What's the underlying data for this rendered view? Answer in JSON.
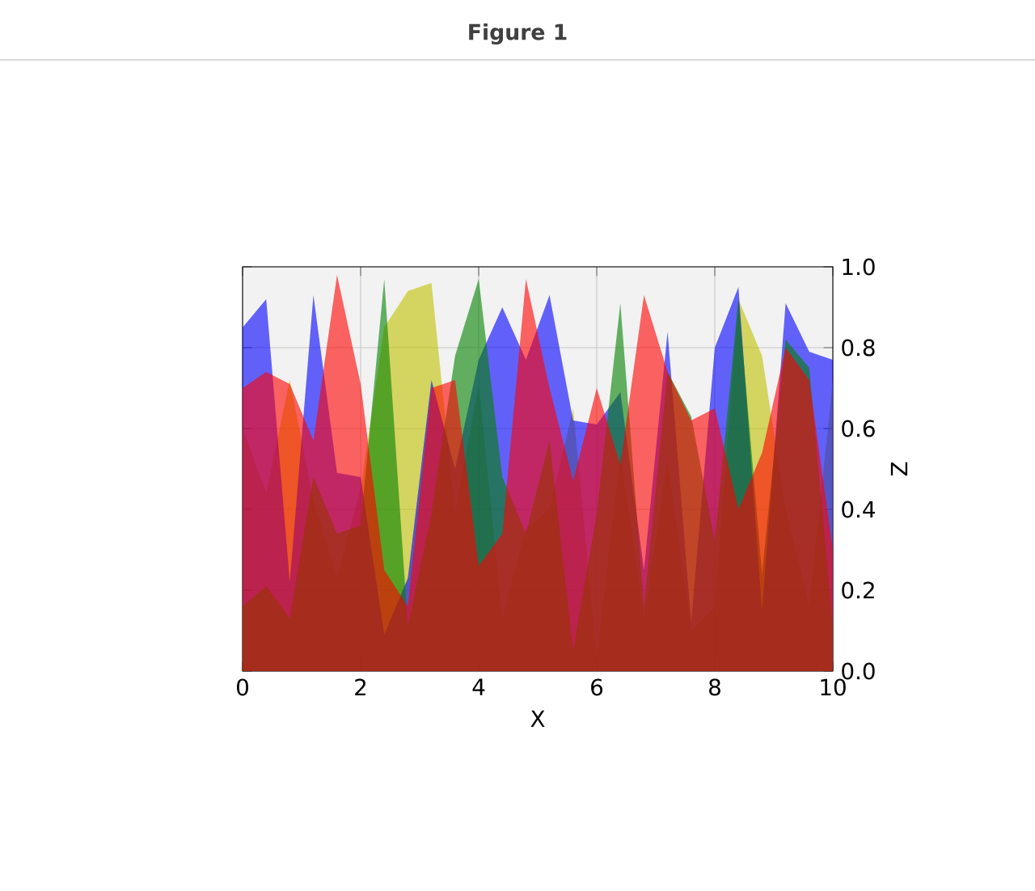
{
  "chart_data": {
    "type": "area",
    "title": "Figure 1",
    "xlabel": "X",
    "ylabel": "Z",
    "x": [
      0,
      0.4,
      0.8,
      1.2,
      1.6,
      2.0,
      2.4,
      2.8,
      3.2,
      3.6,
      4.0,
      4.4,
      4.8,
      5.2,
      5.6,
      6.0,
      6.4,
      6.8,
      7.2,
      7.6,
      8.0,
      8.4,
      8.8,
      9.2,
      9.6,
      10
    ],
    "series": [
      {
        "color": "#ff0000",
        "values": [
          0.7,
          0.74,
          0.71,
          0.57,
          0.98,
          0.71,
          0.25,
          0.16,
          0.7,
          0.72,
          0.26,
          0.34,
          0.97,
          0.7,
          0.47,
          0.7,
          0.51,
          0.93,
          0.74,
          0.62,
          0.65,
          0.4,
          0.54,
          0.8,
          0.72,
          0.3
        ]
      },
      {
        "color": "#008000",
        "values": [
          0.16,
          0.21,
          0.13,
          0.48,
          0.34,
          0.36,
          0.97,
          0.11,
          0.39,
          0.78,
          0.97,
          0.48,
          0.34,
          0.57,
          0.05,
          0.39,
          0.91,
          0.16,
          0.74,
          0.63,
          0.32,
          0.92,
          0.24,
          0.82,
          0.75,
          0.11
        ]
      },
      {
        "color": "#0000ff",
        "values": [
          0.85,
          0.92,
          0.22,
          0.93,
          0.49,
          0.48,
          0.09,
          0.23,
          0.72,
          0.5,
          0.77,
          0.9,
          0.77,
          0.93,
          0.62,
          0.61,
          0.69,
          0.25,
          0.84,
          0.12,
          0.8,
          0.95,
          0.15,
          0.91,
          0.79,
          0.77
        ]
      },
      {
        "color": "#bfbf00",
        "values": [
          0.6,
          0.44,
          0.72,
          0.42,
          0.23,
          0.45,
          0.85,
          0.94,
          0.96,
          0.39,
          0.71,
          0.13,
          0.35,
          0.4,
          0.65,
          0.03,
          0.54,
          0.13,
          0.52,
          0.1,
          0.16,
          0.92,
          0.78,
          0.4,
          0.16,
          0.72
        ]
      }
    ],
    "xlim": [
      0,
      10
    ],
    "ylim": [
      0,
      1
    ],
    "xticks": [
      0,
      2,
      4,
      6,
      8,
      10
    ],
    "yticks": [
      {
        "value": 0,
        "label": "0.0"
      },
      {
        "value": 0.2,
        "label": "0.2"
      },
      {
        "value": 0.4,
        "label": "0.4"
      },
      {
        "value": 0.6,
        "label": "0.6"
      },
      {
        "value": 0.8,
        "label": "0.8"
      },
      {
        "value": 1,
        "label": "1.0"
      }
    ],
    "grid": true
  }
}
